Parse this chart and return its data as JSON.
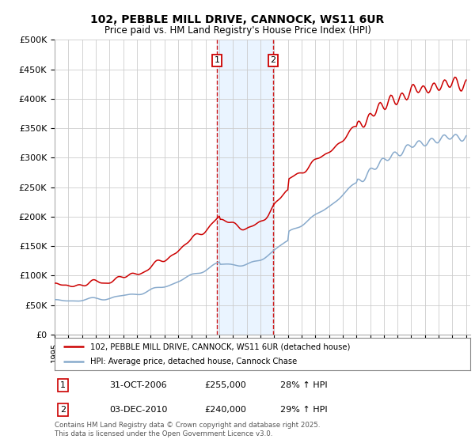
{
  "title_line1": "102, PEBBLE MILL DRIVE, CANNOCK, WS11 6UR",
  "title_line2": "Price paid vs. HM Land Registry's House Price Index (HPI)",
  "ylabel_ticks": [
    "£0",
    "£50K",
    "£100K",
    "£150K",
    "£200K",
    "£250K",
    "£300K",
    "£350K",
    "£400K",
    "£450K",
    "£500K"
  ],
  "ytick_values": [
    0,
    50000,
    100000,
    150000,
    200000,
    250000,
    300000,
    350000,
    400000,
    450000,
    500000
  ],
  "x_start_year": 1995,
  "x_end_year": 2025,
  "red_color": "#cc0000",
  "blue_color": "#88aacc",
  "marker1_date": 2006.83,
  "marker1_value": 255000,
  "marker2_date": 2010.92,
  "marker2_value": 240000,
  "legend_label_red": "102, PEBBLE MILL DRIVE, CANNOCK, WS11 6UR (detached house)",
  "legend_label_blue": "HPI: Average price, detached house, Cannock Chase",
  "table_row1": [
    "1",
    "31-OCT-2006",
    "£255,000",
    "28% ↑ HPI"
  ],
  "table_row2": [
    "2",
    "03-DEC-2010",
    "£240,000",
    "29% ↑ HPI"
  ],
  "footnote": "Contains HM Land Registry data © Crown copyright and database right 2025.\nThis data is licensed under the Open Government Licence v3.0.",
  "background_color": "#ffffff",
  "grid_color": "#cccccc",
  "shading_color": "#ddeeff"
}
